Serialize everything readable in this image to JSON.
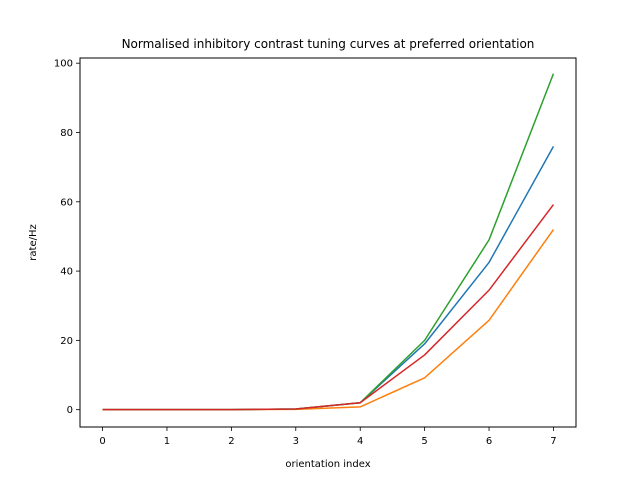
{
  "chart_data": {
    "type": "line",
    "title": "Normalised inhibitory contrast tuning curves at preferred orientation",
    "xlabel": "orientation index",
    "ylabel": "rate/Hz",
    "xlim": [
      -0.35,
      7.35
    ],
    "ylim": [
      -5,
      101.5
    ],
    "xticks": [
      0,
      1,
      2,
      3,
      4,
      5,
      6,
      7
    ],
    "yticks": [
      0,
      20,
      40,
      60,
      80,
      100
    ],
    "grid": false,
    "x": [
      0,
      1,
      2,
      3,
      4,
      5,
      6,
      7
    ],
    "series": [
      {
        "color": "#1f77b4",
        "values": [
          0,
          0,
          0,
          0.2,
          2.0,
          19.0,
          42.5,
          76.0
        ]
      },
      {
        "color": "#ff7f0e",
        "values": [
          0,
          0,
          0,
          0.1,
          0.8,
          9.2,
          25.8,
          52.0
        ]
      },
      {
        "color": "#2ca02c",
        "values": [
          0,
          0,
          0,
          0.2,
          2.0,
          20.0,
          49.0,
          97.0
        ]
      },
      {
        "color": "#d62728",
        "values": [
          0,
          0,
          0,
          0.2,
          2.0,
          15.8,
          34.5,
          59.2
        ]
      }
    ]
  }
}
